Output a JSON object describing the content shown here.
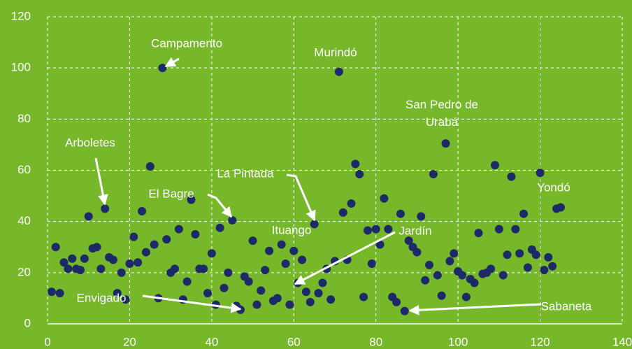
{
  "chart_data": {
    "type": "scatter",
    "x": [
      1,
      2,
      3,
      4,
      5,
      6,
      7,
      8,
      9,
      10,
      11,
      12,
      13,
      14,
      15,
      16,
      17,
      18,
      19,
      20,
      21,
      22,
      23,
      24,
      25,
      26,
      27,
      28,
      29,
      30,
      31,
      32,
      33,
      34,
      35,
      36,
      37,
      38,
      39,
      40,
      41,
      42,
      43,
      44,
      45,
      46,
      47,
      48,
      49,
      50,
      51,
      52,
      53,
      54,
      55,
      56,
      57,
      58,
      59,
      60,
      61,
      62,
      63,
      64,
      65,
      66,
      67,
      68,
      69,
      70,
      71,
      72,
      73,
      74,
      75,
      76,
      77,
      78,
      79,
      80,
      81,
      82,
      83,
      84,
      85,
      86,
      87,
      88,
      89,
      90,
      91,
      92,
      93,
      94,
      95,
      96,
      97,
      98,
      99,
      100,
      101,
      102,
      103,
      104,
      105,
      106,
      107,
      108,
      109,
      110,
      111,
      112,
      113,
      114,
      115,
      116,
      117,
      118,
      119,
      120,
      121,
      122,
      123,
      124,
      125
    ],
    "values": [
      12.5,
      30,
      12,
      24,
      21.5,
      25.5,
      21.5,
      21,
      25.5,
      42,
      29.5,
      30,
      21.5,
      45,
      26,
      25,
      12,
      20,
      9.5,
      23.5,
      34,
      24,
      44,
      28,
      61.5,
      31,
      10,
      100,
      33,
      20,
      21.5,
      37,
      9.5,
      16.5,
      48.5,
      35,
      21.5,
      21.5,
      12,
      27.5,
      7.5,
      37.5,
      14,
      20,
      40.5,
      7,
      5.5,
      18.5,
      16.5,
      32.5,
      7.5,
      13,
      21,
      28.5,
      9,
      10,
      31,
      23.5,
      7.5,
      28.5,
      16,
      25,
      12.5,
      8.5,
      39,
      12,
      16,
      21.5,
      9.5,
      24.5,
      98.5,
      43.5,
      25,
      47,
      62.5,
      58.5,
      10.5,
      36.5,
      23.5,
      37,
      31,
      49,
      37,
      10.5,
      8.5,
      43,
      5,
      32.5,
      30,
      28,
      42,
      17,
      23,
      58.5,
      19,
      11,
      70.5,
      24.5,
      27.5,
      20.5,
      19,
      10.5,
      17.5,
      16,
      35.5,
      19.5,
      20,
      21.5,
      62,
      37,
      19,
      27,
      57.5,
      37,
      27.5,
      43,
      22,
      29,
      27,
      59,
      21,
      26,
      22.5,
      45,
      45.5
    ],
    "color": "#1c2a68",
    "xlim": [
      0,
      140
    ],
    "xticks": [
      0,
      20,
      40,
      60,
      80,
      100,
      120,
      140
    ],
    "ylim": [
      0,
      120
    ],
    "yticks": [
      0,
      20,
      40,
      60,
      80,
      100,
      120
    ],
    "grid": true,
    "annotations": [
      "Campamento",
      "Murindó",
      "San Pedro de Urabá",
      "Arboletes",
      "La Pintada",
      "El Bagre",
      "Ituango",
      "Jardín",
      "Yondó",
      "Envigado",
      "Sabaneta"
    ]
  }
}
